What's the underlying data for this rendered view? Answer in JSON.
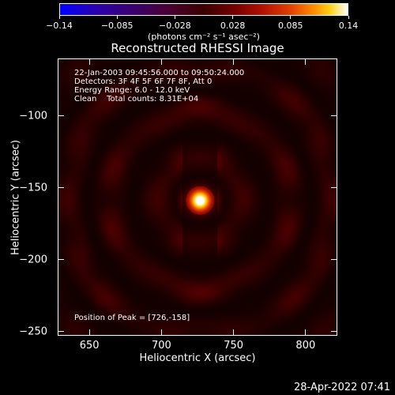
{
  "chart_data": {
    "type": "heatmap",
    "title": "Reconstructed RHESSI Image",
    "xlabel": "Heliocentric X (arcsec)",
    "ylabel": "Heliocentric Y (arcsec)",
    "xlim": [
      628,
      822
    ],
    "ylim": [
      -253,
      -60
    ],
    "x_ticks": [
      650,
      700,
      750,
      800
    ],
    "y_ticks": [
      -100,
      -150,
      -200,
      -250
    ],
    "colorbar": {
      "range": [
        -0.14,
        0.14
      ],
      "ticks": [
        "−0.14",
        "−0.085",
        "−0.028",
        "0.028",
        "0.085",
        "0.14"
      ],
      "units": "(photons cm⁻² s⁻¹ asec⁻²)",
      "colormap": "blue-black-red-yellow-white"
    },
    "peak": {
      "x": 726,
      "y": -158
    },
    "annotations": {
      "time_range": "22-Jan-2003 09:45:56.000 to 09:50:24.000",
      "detectors": "Detectors: 3F 4F 5F 6F 7F 8F, Att 0",
      "energy": "Energy Range: 6.0 - 12.0 keV",
      "method": "Clean    Total counts: 8.31E+04",
      "peak_position": "Position of Peak = [726,-158]"
    }
  },
  "footer": {
    "timestamp": "28-Apr-2022 07:41"
  }
}
